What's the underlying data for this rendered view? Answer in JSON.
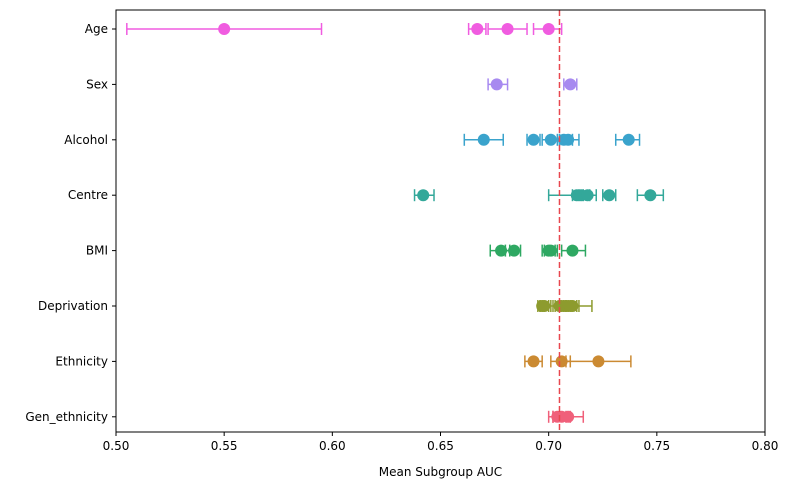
{
  "chart_data": {
    "type": "scatter",
    "title": "",
    "xlabel": "Mean Subgroup AUC",
    "ylabel": "",
    "xlim": [
      0.5,
      0.8
    ],
    "xticks": [
      "0.50",
      "0.55",
      "0.60",
      "0.65",
      "0.70",
      "0.75",
      "0.80"
    ],
    "xtick_values": [
      0.5,
      0.55,
      0.6,
      0.65,
      0.7,
      0.75,
      0.8
    ],
    "reference_line": {
      "x": 0.705,
      "style": "dashed",
      "color": "#e8474f"
    },
    "categories": [
      "Age",
      "Sex",
      "Alcohol",
      "Centre",
      "BMI",
      "Deprivation",
      "Ethnicity",
      "Gen_ethnicity"
    ],
    "series": [
      {
        "name": "Age",
        "color": "#f05ce0",
        "points": [
          {
            "x": 0.55,
            "lo": 0.505,
            "hi": 0.595
          },
          {
            "x": 0.667,
            "lo": 0.663,
            "hi": 0.671
          },
          {
            "x": 0.681,
            "lo": 0.672,
            "hi": 0.69
          },
          {
            "x": 0.7,
            "lo": 0.693,
            "hi": 0.706
          }
        ]
      },
      {
        "name": "Sex",
        "color": "#a78af0",
        "points": [
          {
            "x": 0.676,
            "lo": 0.672,
            "hi": 0.681
          },
          {
            "x": 0.71,
            "lo": 0.707,
            "hi": 0.713
          }
        ]
      },
      {
        "name": "Alcohol",
        "color": "#3aa3cc",
        "points": [
          {
            "x": 0.67,
            "lo": 0.661,
            "hi": 0.679
          },
          {
            "x": 0.693,
            "lo": 0.69,
            "hi": 0.696
          },
          {
            "x": 0.701,
            "lo": 0.697,
            "hi": 0.705
          },
          {
            "x": 0.707,
            "lo": 0.704,
            "hi": 0.711
          },
          {
            "x": 0.709,
            "lo": 0.705,
            "hi": 0.714
          },
          {
            "x": 0.737,
            "lo": 0.731,
            "hi": 0.742
          }
        ]
      },
      {
        "name": "Centre",
        "color": "#33a89a",
        "points": [
          {
            "x": 0.642,
            "lo": 0.638,
            "hi": 0.647
          },
          {
            "x": 0.713,
            "lo": 0.7,
            "hi": 0.716
          },
          {
            "x": 0.715,
            "lo": 0.711,
            "hi": 0.719
          },
          {
            "x": 0.718,
            "lo": 0.714,
            "hi": 0.722
          },
          {
            "x": 0.728,
            "lo": 0.725,
            "hi": 0.731
          },
          {
            "x": 0.747,
            "lo": 0.741,
            "hi": 0.753
          }
        ]
      },
      {
        "name": "BMI",
        "color": "#2ea862",
        "points": [
          {
            "x": 0.678,
            "lo": 0.673,
            "hi": 0.682
          },
          {
            "x": 0.684,
            "lo": 0.68,
            "hi": 0.687
          },
          {
            "x": 0.7,
            "lo": 0.697,
            "hi": 0.703
          },
          {
            "x": 0.701,
            "lo": 0.698,
            "hi": 0.704
          },
          {
            "x": 0.711,
            "lo": 0.706,
            "hi": 0.717
          }
        ]
      },
      {
        "name": "Deprivation",
        "color": "#8d9b2e",
        "points": [
          {
            "x": 0.697,
            "lo": 0.695,
            "hi": 0.7
          },
          {
            "x": 0.698,
            "lo": 0.696,
            "hi": 0.701
          },
          {
            "x": 0.705,
            "lo": 0.702,
            "hi": 0.708
          },
          {
            "x": 0.706,
            "lo": 0.703,
            "hi": 0.709
          },
          {
            "x": 0.708,
            "lo": 0.696,
            "hi": 0.72
          },
          {
            "x": 0.71,
            "lo": 0.707,
            "hi": 0.713
          },
          {
            "x": 0.711,
            "lo": 0.708,
            "hi": 0.714
          }
        ]
      },
      {
        "name": "Ethnicity",
        "color": "#cb8a32",
        "points": [
          {
            "x": 0.693,
            "lo": 0.689,
            "hi": 0.697
          },
          {
            "x": 0.706,
            "lo": 0.701,
            "hi": 0.71
          },
          {
            "x": 0.723,
            "lo": 0.708,
            "hi": 0.738
          }
        ]
      },
      {
        "name": "Gen_ethnicity",
        "color": "#f0607a",
        "points": [
          {
            "x": 0.704,
            "lo": 0.7,
            "hi": 0.708
          },
          {
            "x": 0.706,
            "lo": 0.702,
            "hi": 0.71
          },
          {
            "x": 0.709,
            "lo": 0.702,
            "hi": 0.716
          }
        ]
      }
    ]
  }
}
